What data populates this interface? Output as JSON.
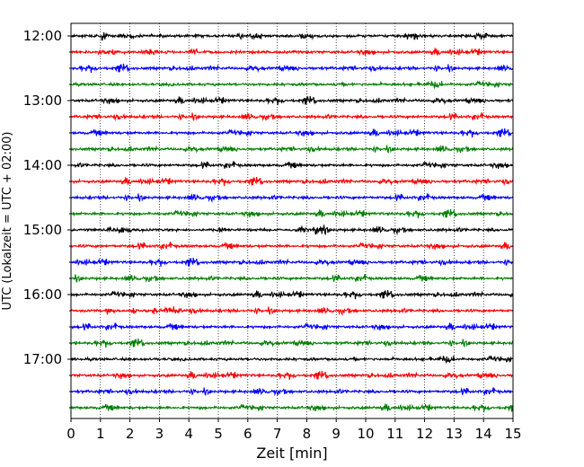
{
  "chart_data": {
    "type": "line",
    "subtype": "helicorder (seismogram drum plot)",
    "xlabel": "Zeit  [min]",
    "ylabel": "UTC (Lokalzeit = UTC + 02:00)",
    "xlim": [
      0,
      15
    ],
    "x_ticks": [
      "0",
      "1",
      "2",
      "3",
      "4",
      "5",
      "6",
      "7",
      "8",
      "9",
      "10",
      "11",
      "12",
      "13",
      "14",
      "15"
    ],
    "y_tick_labels": [
      "12:00",
      "13:00",
      "14:00",
      "15:00",
      "16:00",
      "17:00"
    ],
    "grid": "vertical dotted lines at each minute",
    "trace_interval_minutes": 15,
    "trace_colors": [
      "#000000",
      "#ff0000",
      "#0000ff",
      "#008000"
    ],
    "traces": [
      {
        "start": "12:00",
        "color": "#000000"
      },
      {
        "start": "12:15",
        "color": "#ff0000"
      },
      {
        "start": "12:30",
        "color": "#0000ff"
      },
      {
        "start": "12:45",
        "color": "#008000"
      },
      {
        "start": "13:00",
        "color": "#000000"
      },
      {
        "start": "13:15",
        "color": "#ff0000"
      },
      {
        "start": "13:30",
        "color": "#0000ff"
      },
      {
        "start": "13:45",
        "color": "#008000"
      },
      {
        "start": "14:00",
        "color": "#000000"
      },
      {
        "start": "14:15",
        "color": "#ff0000"
      },
      {
        "start": "14:30",
        "color": "#0000ff"
      },
      {
        "start": "14:45",
        "color": "#008000"
      },
      {
        "start": "15:00",
        "color": "#000000"
      },
      {
        "start": "15:15",
        "color": "#ff0000"
      },
      {
        "start": "15:30",
        "color": "#0000ff"
      },
      {
        "start": "15:45",
        "color": "#008000"
      },
      {
        "start": "16:00",
        "color": "#000000"
      },
      {
        "start": "16:15",
        "color": "#ff0000"
      },
      {
        "start": "16:30",
        "color": "#0000ff"
      },
      {
        "start": "16:45",
        "color": "#008000"
      },
      {
        "start": "17:00",
        "color": "#000000"
      },
      {
        "start": "17:15",
        "color": "#ff0000"
      },
      {
        "start": "17:30",
        "color": "#0000ff"
      },
      {
        "start": "17:45",
        "color": "#008000"
      }
    ]
  }
}
